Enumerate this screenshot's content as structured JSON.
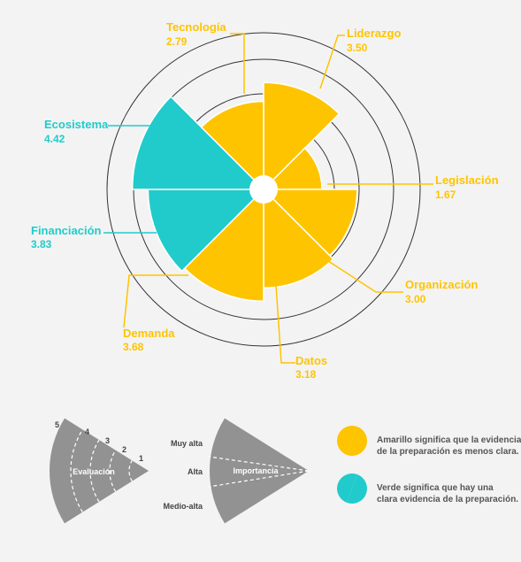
{
  "colors": {
    "yellow": "#ffc400",
    "teal": "#22cbcb",
    "gray": "#929292",
    "ring": "#333333",
    "center": "#ffffff"
  },
  "chart_data": {
    "type": "polar_area",
    "max_value": 5,
    "categories": [
      {
        "name": "Liderazgo",
        "value_label": "3.50",
        "value": 3.5,
        "importance": 1.0,
        "color": "yellow"
      },
      {
        "name": "Legislación",
        "value_label": "1.67",
        "value": 1.67,
        "importance": 0.72,
        "color": "yellow"
      },
      {
        "name": "Organización",
        "value_label": "3.00",
        "value": 3.0,
        "importance": 0.72,
        "color": "yellow"
      },
      {
        "name": "Datos",
        "value_label": "3.18",
        "value": 3.18,
        "importance": 1.0,
        "color": "yellow"
      },
      {
        "name": "Demanda",
        "value_label": "3.68",
        "value": 3.68,
        "importance": 1.0,
        "color": "yellow"
      },
      {
        "name": "Financiación",
        "value_label": "3.83",
        "value": 3.83,
        "importance": 0.85,
        "color": "teal"
      },
      {
        "name": "Ecosistema",
        "value_label": "4.42",
        "value": 4.42,
        "importance": 1.0,
        "color": "teal"
      },
      {
        "name": "Tecnología",
        "value_label": "2.79",
        "value": 2.79,
        "importance": 0.85,
        "color": "yellow"
      }
    ],
    "rings": [
      1,
      2,
      3,
      4,
      5
    ]
  },
  "legend": {
    "evaluation": {
      "label": "Evaluación",
      "ring_labels": [
        "5",
        "4",
        "3",
        "2",
        "1"
      ]
    },
    "importance": {
      "label": "Importancia",
      "levels": [
        "Muy alta",
        "Alta",
        "Medio-alta"
      ]
    },
    "color_key": [
      {
        "color": "yellow",
        "lines": [
          "Amarillo significa que la evidencia",
          "de la preparación es menos clara."
        ]
      },
      {
        "color": "teal",
        "lines": [
          "Verde significa que hay una",
          "clara evidencia de la preparación."
        ]
      }
    ]
  }
}
